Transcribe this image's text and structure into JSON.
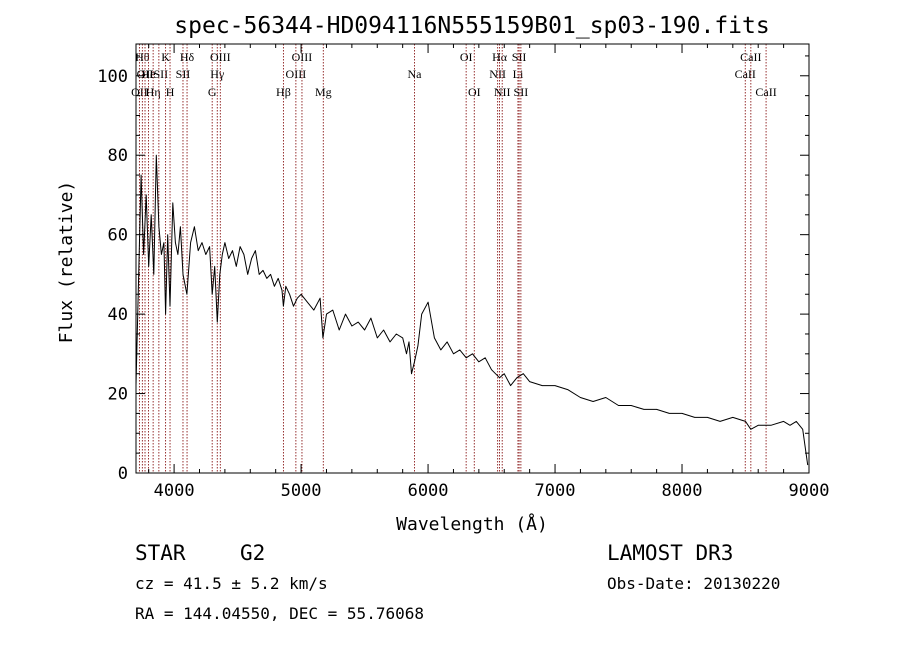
{
  "chart_data": {
    "type": "line",
    "title": "spec-56344-HD094116N555159B01_sp03-190.fits",
    "xlabel": "Wavelength (Å)",
    "ylabel": "Flux (relative)",
    "xlim": [
      3700,
      9000
    ],
    "ylim": [
      0,
      108
    ],
    "xticks": [
      4000,
      5000,
      6000,
      7000,
      8000,
      9000
    ],
    "xtick_labels": [
      "4000",
      "5000",
      "6000",
      "7000",
      "8000",
      "9000"
    ],
    "yticks": [
      0,
      20,
      40,
      60,
      80,
      100
    ],
    "ytick_labels": [
      "0",
      "20",
      "40",
      "60",
      "80",
      "100"
    ],
    "grid": false,
    "line_color": "#000000",
    "marker_color": "#8b1a1a",
    "series": [
      {
        "name": "flux",
        "x": [
          3700,
          3720,
          3740,
          3760,
          3780,
          3800,
          3820,
          3840,
          3860,
          3880,
          3900,
          3920,
          3933,
          3950,
          3968,
          3990,
          4010,
          4030,
          4050,
          4070,
          4101,
          4130,
          4160,
          4190,
          4220,
          4250,
          4280,
          4300,
          4320,
          4340,
          4360,
          4380,
          4400,
          4430,
          4460,
          4490,
          4520,
          4550,
          4580,
          4610,
          4640,
          4670,
          4700,
          4730,
          4760,
          4790,
          4820,
          4850,
          4861,
          4880,
          4910,
          4940,
          4970,
          5000,
          5050,
          5100,
          5150,
          5172,
          5200,
          5250,
          5300,
          5350,
          5400,
          5450,
          5500,
          5550,
          5600,
          5650,
          5700,
          5750,
          5800,
          5830,
          5850,
          5870,
          5893,
          5920,
          5950,
          6000,
          6050,
          6100,
          6150,
          6200,
          6250,
          6300,
          6350,
          6400,
          6450,
          6500,
          6563,
          6600,
          6650,
          6700,
          6750,
          6800,
          6900,
          7000,
          7100,
          7200,
          7300,
          7400,
          7500,
          7600,
          7700,
          7800,
          7900,
          8000,
          8100,
          8200,
          8300,
          8400,
          8500,
          8542,
          8600,
          8662,
          8700,
          8800,
          8850,
          8900,
          8950,
          8990
        ],
        "y": [
          22,
          48,
          75,
          55,
          70,
          52,
          65,
          50,
          80,
          62,
          55,
          58,
          40,
          60,
          42,
          68,
          58,
          55,
          62,
          50,
          45,
          58,
          62,
          56,
          58,
          55,
          57,
          45,
          52,
          38,
          50,
          55,
          58,
          54,
          56,
          52,
          57,
          55,
          50,
          54,
          56,
          50,
          51,
          49,
          50,
          47,
          49,
          46,
          42,
          47,
          45,
          42,
          44,
          45,
          43,
          41,
          44,
          34,
          40,
          41,
          36,
          40,
          37,
          38,
          36,
          39,
          34,
          36,
          33,
          35,
          34,
          30,
          33,
          25,
          28,
          32,
          40,
          43,
          34,
          31,
          33,
          30,
          31,
          29,
          30,
          28,
          29,
          26,
          24,
          25,
          22,
          24,
          25,
          23,
          22,
          22,
          21,
          19,
          18,
          19,
          17,
          17,
          16,
          16,
          15,
          15,
          14,
          14,
          13,
          14,
          13,
          11,
          12,
          12,
          12,
          13,
          12,
          13,
          11,
          2
        ]
      }
    ],
    "line_markers": [
      {
        "wavelength": 3727,
        "label": "OII",
        "row": 2
      },
      {
        "wavelength": 3750,
        "label": "Hθ",
        "row": 0
      },
      {
        "wavelength": 3771,
        "label": "OII",
        "row": 1
      },
      {
        "wavelength": 3798,
        "label": "He",
        "row": 1
      },
      {
        "wavelength": 3835,
        "label": "Hη",
        "row": 2
      },
      {
        "wavelength": 3880,
        "label": "ISII",
        "row": 1
      },
      {
        "wavelength": 3933,
        "label": "K",
        "row": 0
      },
      {
        "wavelength": 3968,
        "label": "H",
        "row": 2
      },
      {
        "wavelength": 4070,
        "label": "SII",
        "row": 1
      },
      {
        "wavelength": 4102,
        "label": "Hδ",
        "row": 0
      },
      {
        "wavelength": 4300,
        "label": "G",
        "row": 2
      },
      {
        "wavelength": 4340,
        "label": "Hγ",
        "row": 1
      },
      {
        "wavelength": 4364,
        "label": "OIII",
        "row": 0
      },
      {
        "wavelength": 4861,
        "label": "Hβ",
        "row": 2
      },
      {
        "wavelength": 4959,
        "label": "OIII",
        "row": 1
      },
      {
        "wavelength": 5007,
        "label": "OIII",
        "row": 0
      },
      {
        "wavelength": 5175,
        "label": "Mg",
        "row": 2
      },
      {
        "wavelength": 5893,
        "label": "Na",
        "row": 1
      },
      {
        "wavelength": 6300,
        "label": "OI",
        "row": 0
      },
      {
        "wavelength": 6364,
        "label": "OI",
        "row": 2
      },
      {
        "wavelength": 6548,
        "label": "NII",
        "row": 1
      },
      {
        "wavelength": 6563,
        "label": "Hα",
        "row": 0
      },
      {
        "wavelength": 6584,
        "label": "NII",
        "row": 2
      },
      {
        "wavelength": 6708,
        "label": "Li",
        "row": 1
      },
      {
        "wavelength": 6717,
        "label": "SII",
        "row": 0
      },
      {
        "wavelength": 6731,
        "label": "SII",
        "row": 2
      },
      {
        "wavelength": 8498,
        "label": "CaII",
        "row": 1
      },
      {
        "wavelength": 8542,
        "label": "CaII",
        "row": 0
      },
      {
        "wavelength": 8662,
        "label": "CaII",
        "row": 2
      }
    ]
  },
  "info": {
    "object_class": "STAR",
    "subclass": "G2",
    "cz": "cz = 41.5 ± 5.2 km/s",
    "coords": "RA = 144.04550, DEC =  55.76068",
    "survey": "LAMOST DR3",
    "obs_date": "Obs-Date: 20130220"
  }
}
